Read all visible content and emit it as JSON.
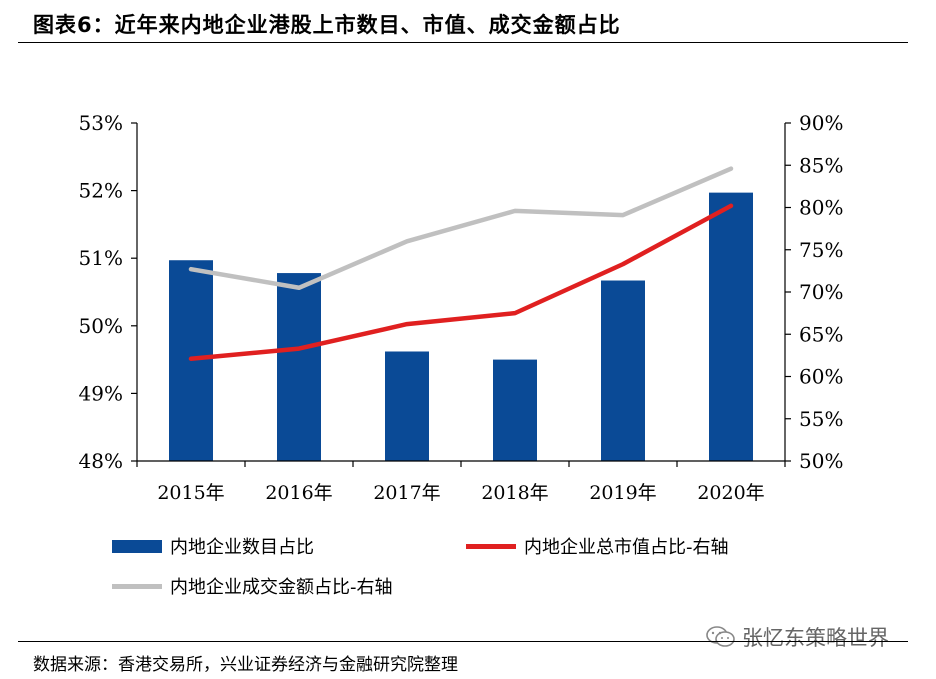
{
  "header": {
    "title": "图表6：近年来内地企业港股上市数目、市值、成交金额占比"
  },
  "chart_data": {
    "type": "bar",
    "categories": [
      "2015年",
      "2016年",
      "2017年",
      "2018年",
      "2019年",
      "2020年"
    ],
    "left_axis": {
      "ylim": [
        48,
        53
      ],
      "ticks": [
        "48%",
        "49%",
        "50%",
        "51%",
        "52%",
        "53%"
      ]
    },
    "right_axis": {
      "ylim": [
        50,
        90
      ],
      "ticks": [
        "50%",
        "55%",
        "60%",
        "65%",
        "70%",
        "75%",
        "80%",
        "85%",
        "90%"
      ]
    },
    "series": [
      {
        "name": "内地企业数目占比",
        "kind": "bar",
        "axis": "left",
        "color": "#0a4a96",
        "values": [
          50.97,
          50.78,
          49.62,
          49.5,
          50.67,
          51.97
        ]
      },
      {
        "name": "内地企业总市值占比-右轴",
        "kind": "line",
        "axis": "right",
        "color": "#e02020",
        "values": [
          62.1,
          63.3,
          66.2,
          67.5,
          73.3,
          80.2
        ]
      },
      {
        "name": "内地企业成交金额占比-右轴",
        "kind": "line",
        "axis": "right",
        "color": "#c0c0c0",
        "values": [
          72.7,
          70.5,
          76.0,
          79.6,
          79.1,
          84.6
        ]
      }
    ]
  },
  "footer": {
    "source": "数据来源：香港交易所，兴业证券经济与金融研究院整理",
    "watermark": "张忆东策略世界",
    "watermark_icon": "wechat-icon"
  }
}
